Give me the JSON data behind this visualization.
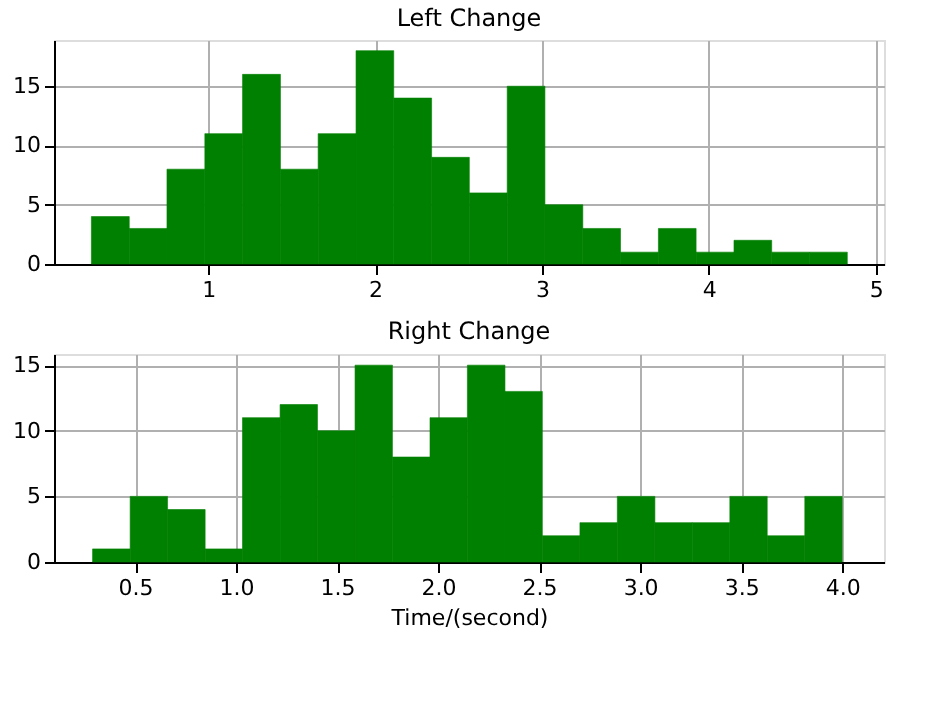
{
  "chart_data": [
    {
      "type": "histogram",
      "title": "Left Change",
      "color": "#008000",
      "bins": [
        0.3,
        0.527,
        0.753,
        0.98,
        1.206,
        1.433,
        1.659,
        1.886,
        2.112,
        2.339,
        2.565,
        2.792,
        3.018,
        3.245,
        3.471,
        3.698,
        3.924,
        4.151,
        4.377,
        4.604,
        4.83
      ],
      "values": [
        4,
        3,
        8,
        11,
        16,
        8,
        11,
        18,
        14,
        9,
        6,
        15,
        5,
        3,
        1,
        3,
        1,
        2,
        1,
        1
      ],
      "xlim": [
        0.076,
        5.05
      ],
      "xticks": [
        1,
        2,
        3,
        4,
        5
      ],
      "ylim": [
        0,
        18.9
      ],
      "yticks": [
        0,
        5,
        10,
        15
      ],
      "grid": true
    },
    {
      "type": "histogram",
      "title": "Right Change",
      "xlabel": "Time/(second)",
      "color": "#008000",
      "bins": [
        0.29,
        0.476,
        0.661,
        0.847,
        1.032,
        1.218,
        1.403,
        1.589,
        1.774,
        1.96,
        2.145,
        2.331,
        2.516,
        2.702,
        2.887,
        3.073,
        3.258,
        3.444,
        3.629,
        3.815,
        4.0
      ],
      "values": [
        1,
        5,
        4,
        1,
        11,
        12,
        10,
        15,
        8,
        11,
        15,
        13,
        2,
        3,
        5,
        3,
        3,
        5,
        2,
        5
      ],
      "xlim": [
        0.099,
        4.207
      ],
      "xticks": [
        {
          "value": 0.5,
          "label": "0.5"
        },
        {
          "value": 1,
          "label": "1.0"
        },
        {
          "value": 1.5,
          "label": "1.5"
        },
        {
          "value": 2,
          "label": "2.0"
        },
        {
          "value": 2.5,
          "label": "2.5"
        },
        {
          "value": 3,
          "label": "3.0"
        },
        {
          "value": 3.5,
          "label": "3.5"
        },
        {
          "value": 4,
          "label": "4.0"
        }
      ],
      "ylim": [
        0,
        15.85
      ],
      "yticks": [
        0,
        5,
        10,
        15
      ],
      "grid": true
    }
  ]
}
